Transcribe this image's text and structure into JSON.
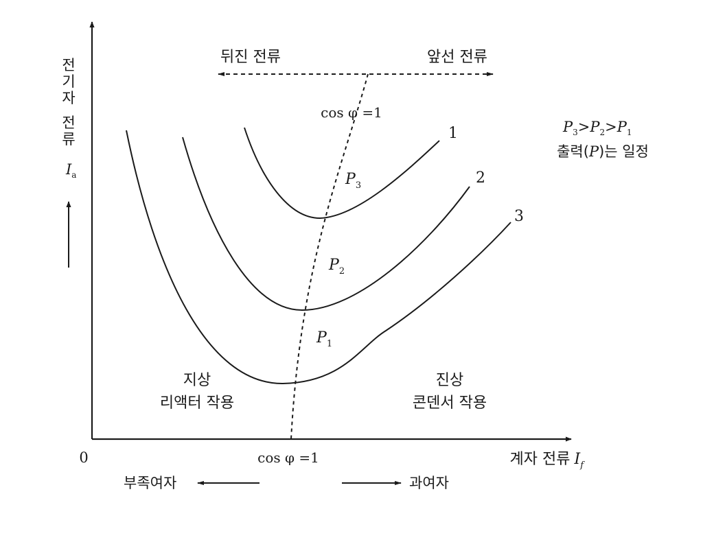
{
  "diagram": {
    "title": "",
    "y_axis": {
      "label_chars": [
        "전",
        "기",
        "자",
        "전",
        "류"
      ],
      "symbol": "I",
      "symbol_sub": "a"
    },
    "x_axis": {
      "origin": "0",
      "label": "계자 전류",
      "symbol": "I",
      "symbol_sub": "f"
    },
    "top_arrow": {
      "left": "뒤진 전류",
      "right": "앞선 전류"
    },
    "pf_line_label_top": "cos φ =1",
    "pf_line_label_bottom": "cos φ =1",
    "curves": [
      {
        "number": "1",
        "power": "P",
        "power_sub": "3"
      },
      {
        "number": "2",
        "power": "P",
        "power_sub": "2"
      },
      {
        "number": "3",
        "power": "P",
        "power_sub": "1"
      }
    ],
    "note": {
      "relation": [
        "P",
        "3",
        ">",
        "P",
        "2",
        ">",
        "P",
        "1"
      ],
      "line2_pre": "출력(",
      "line2_sym": "P",
      "line2_post": ")는 일정"
    },
    "regions": {
      "lagging": [
        "지상",
        "리액터 작용"
      ],
      "leading": [
        "진상",
        "콘덴서 작용"
      ]
    },
    "bottom": {
      "under_excitation": "부족여자",
      "over_excitation": "과여자"
    },
    "colors": {
      "ink": "#1a1a1a",
      "background": "#ffffff"
    }
  }
}
